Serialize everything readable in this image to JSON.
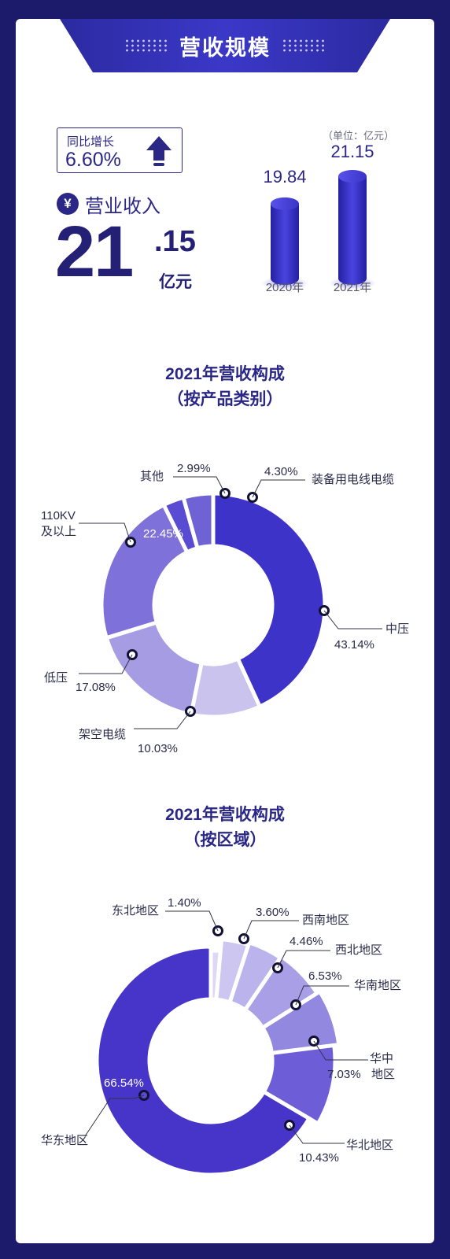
{
  "header": {
    "title": "营收规模"
  },
  "growth": {
    "label": "同比增长",
    "value": "6.60%"
  },
  "revenue": {
    "label": "营业收入",
    "currency_symbol": "¥",
    "integer_part": "21",
    "decimal_part": ".15",
    "unit": "亿元"
  },
  "bar_chart": {
    "unit_note": "（单位：亿元）"
  },
  "colors": {
    "background": "#1c1a6b",
    "primary": "#2a2786",
    "accent": "#3d33c9"
  },
  "chart_data": [
    {
      "type": "bar",
      "categories": [
        "2020年",
        "2021年"
      ],
      "values": [
        19.84,
        21.15
      ],
      "value_labels": [
        "19.84",
        "21.15"
      ],
      "unit": "亿元"
    },
    {
      "type": "pie",
      "title": "2021年营收构成",
      "subtitle": "（按产品类别）",
      "slices": [
        {
          "label": "中压",
          "value": 43.14,
          "pct_label": "43.14%",
          "color": "#3d33c9"
        },
        {
          "label": "架空电缆",
          "value": 10.03,
          "pct_label": "10.03%",
          "color": "#c9c3ee"
        },
        {
          "label": "低压",
          "value": 17.08,
          "pct_label": "17.08%",
          "color": "#a59ce3"
        },
        {
          "label": "110KV 及以上",
          "value": 22.45,
          "pct_label": "22.45%",
          "color": "#7e71d9"
        },
        {
          "label": "其他",
          "value": 2.99,
          "pct_label": "2.99%",
          "color": "#5a4bd3"
        },
        {
          "label": "装备用电线电缆",
          "value": 4.3,
          "pct_label": "4.30%",
          "color": "#6e62d5"
        }
      ]
    },
    {
      "type": "pie",
      "title": "2021年营收构成",
      "subtitle": "（按区域）",
      "slices": [
        {
          "label": "东北地区",
          "value": 1.4,
          "pct_label": "1.40%",
          "color": "#dcd8f6"
        },
        {
          "label": "西南地区",
          "value": 3.6,
          "pct_label": "3.60%",
          "color": "#ccc6f1"
        },
        {
          "label": "西北地区",
          "value": 4.46,
          "pct_label": "4.46%",
          "color": "#bbb3ec"
        },
        {
          "label": "华南地区",
          "value": 6.53,
          "pct_label": "6.53%",
          "color": "#a99fe6"
        },
        {
          "label": "华中地区",
          "value": 7.03,
          "pct_label": "7.03%",
          "color": "#9288df"
        },
        {
          "label": "华北地区",
          "value": 10.43,
          "pct_label": "10.43%",
          "color": "#6d5ed8"
        },
        {
          "label": "华东地区",
          "value": 66.54,
          "pct_label": "66.54%",
          "color": "#4635c8"
        }
      ]
    }
  ]
}
